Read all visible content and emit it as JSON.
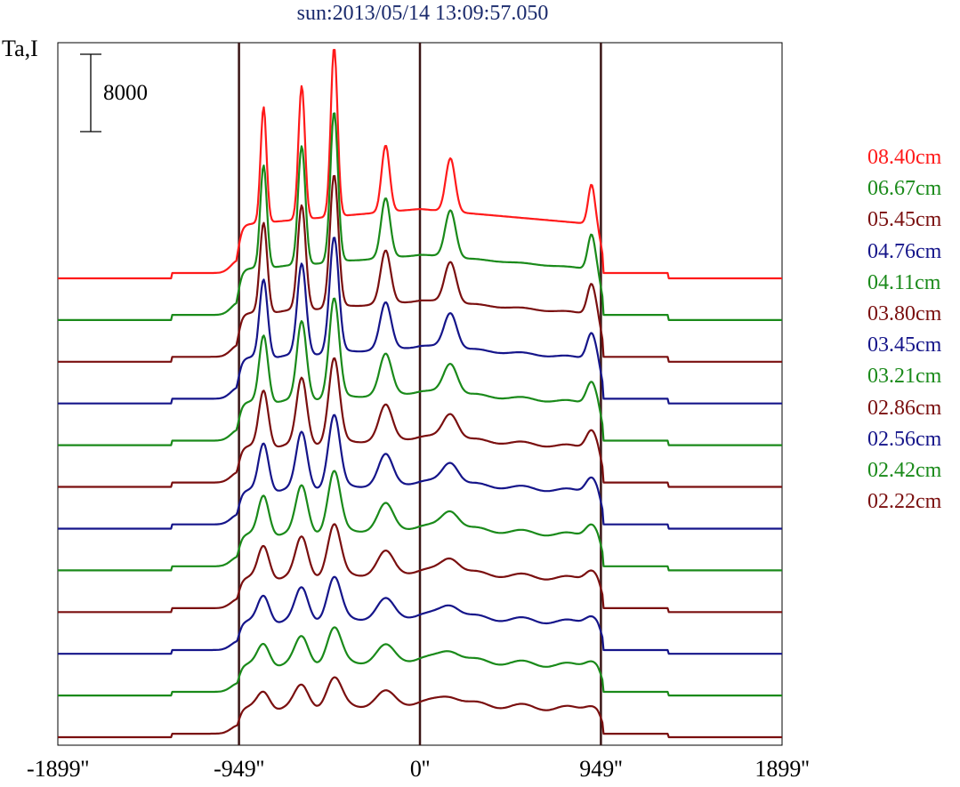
{
  "chart_data": {
    "type": "line",
    "title": "sun:2013/05/14 13:09:57.050",
    "ylabel": "Ta,I",
    "scale_bar_label": "8000",
    "scale_bar_value": 8000,
    "xlim": [
      -1899,
      1899
    ],
    "x_ticks": [
      {
        "value": -1899,
        "label": "-1899''"
      },
      {
        "value": -949,
        "label": "-949''"
      },
      {
        "value": 0,
        "label": "0''"
      },
      {
        "value": 949,
        "label": "949''"
      },
      {
        "value": 1899,
        "label": "1899''"
      }
    ],
    "vertical_lines": [
      -949,
      0,
      949
    ],
    "series": [
      {
        "name": "08.40cm",
        "color": "#ff1a1a",
        "scale": 1.0
      },
      {
        "name": "06.67cm",
        "color": "#1a8a1a",
        "scale": 0.92
      },
      {
        "name": "05.45cm",
        "color": "#7a0f0f",
        "scale": 0.84
      },
      {
        "name": "04.76cm",
        "color": "#15158a",
        "scale": 0.76
      },
      {
        "name": "04.11cm",
        "color": "#1a8a1a",
        "scale": 0.68
      },
      {
        "name": "03.80cm",
        "color": "#7a0f0f",
        "scale": 0.6
      },
      {
        "name": "03.45cm",
        "color": "#15158a",
        "scale": 0.53
      },
      {
        "name": "03.21cm",
        "color": "#1a8a1a",
        "scale": 0.46
      },
      {
        "name": "02.86cm",
        "color": "#7a0f0f",
        "scale": 0.4
      },
      {
        "name": "02.56cm",
        "color": "#15158a",
        "scale": 0.34
      },
      {
        "name": "02.42cm",
        "color": "#1a8a1a",
        "scale": 0.29
      },
      {
        "name": "02.22cm",
        "color": "#7a0f0f",
        "scale": 0.24
      }
    ]
  }
}
